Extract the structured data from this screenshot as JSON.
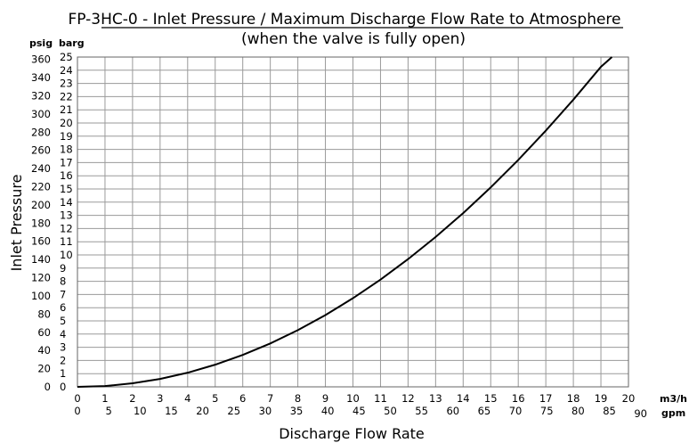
{
  "chart_data": {
    "type": "line",
    "title": "FP-3HC-0 - Inlet Pressure / Maximum Discharge Flow Rate to Atmosphere",
    "subtitle": "(when the valve is fully open)",
    "xlabel": "Discharge Flow Rate",
    "ylabel": "Inlet Pressure",
    "x_unit_primary": "m3/h",
    "x_unit_secondary": "gpm",
    "y_unit_left": "psig",
    "y_unit_right": "barg",
    "xlim": [
      0,
      20
    ],
    "ylim_barg": [
      0,
      25
    ],
    "x_ticks_m3h": [
      "0",
      "1",
      "2",
      "3",
      "4",
      "5",
      "6",
      "7",
      "8",
      "9",
      "10",
      "11",
      "12",
      "13",
      "14",
      "15",
      "16",
      "17",
      "18",
      "19",
      "20"
    ],
    "x_ticks_gpm": [
      "0",
      "5",
      "10",
      "15",
      "20",
      "25",
      "30",
      "35",
      "40",
      "45",
      "50",
      "55",
      "60",
      "65",
      "70",
      "75",
      "80",
      "85",
      "90"
    ],
    "y_ticks_psig": [
      "0",
      "20",
      "40",
      "60",
      "80",
      "100",
      "120",
      "140",
      "160",
      "180",
      "200",
      "220",
      "240",
      "260",
      "280",
      "300",
      "320",
      "340",
      "360"
    ],
    "y_ticks_barg": [
      "0",
      "1",
      "2",
      "3",
      "4",
      "5",
      "6",
      "7",
      "8",
      "9",
      "10",
      "11",
      "12",
      "13",
      "14",
      "15",
      "16",
      "17",
      "18",
      "19",
      "20",
      "21",
      "22",
      "23",
      "24",
      "25"
    ],
    "grid": true,
    "series": [
      {
        "x": [
          0,
          1,
          2,
          3,
          4,
          5,
          6,
          7,
          8,
          9,
          10,
          11,
          12,
          13,
          14,
          15,
          16,
          17,
          18,
          19,
          19.4
        ],
        "y": [
          0,
          0.06,
          0.27,
          0.6,
          1.07,
          1.68,
          2.42,
          3.29,
          4.3,
          5.44,
          6.72,
          8.13,
          9.68,
          11.36,
          13.17,
          15.12,
          17.2,
          19.42,
          21.77,
          24.26,
          25.0
        ]
      }
    ]
  }
}
